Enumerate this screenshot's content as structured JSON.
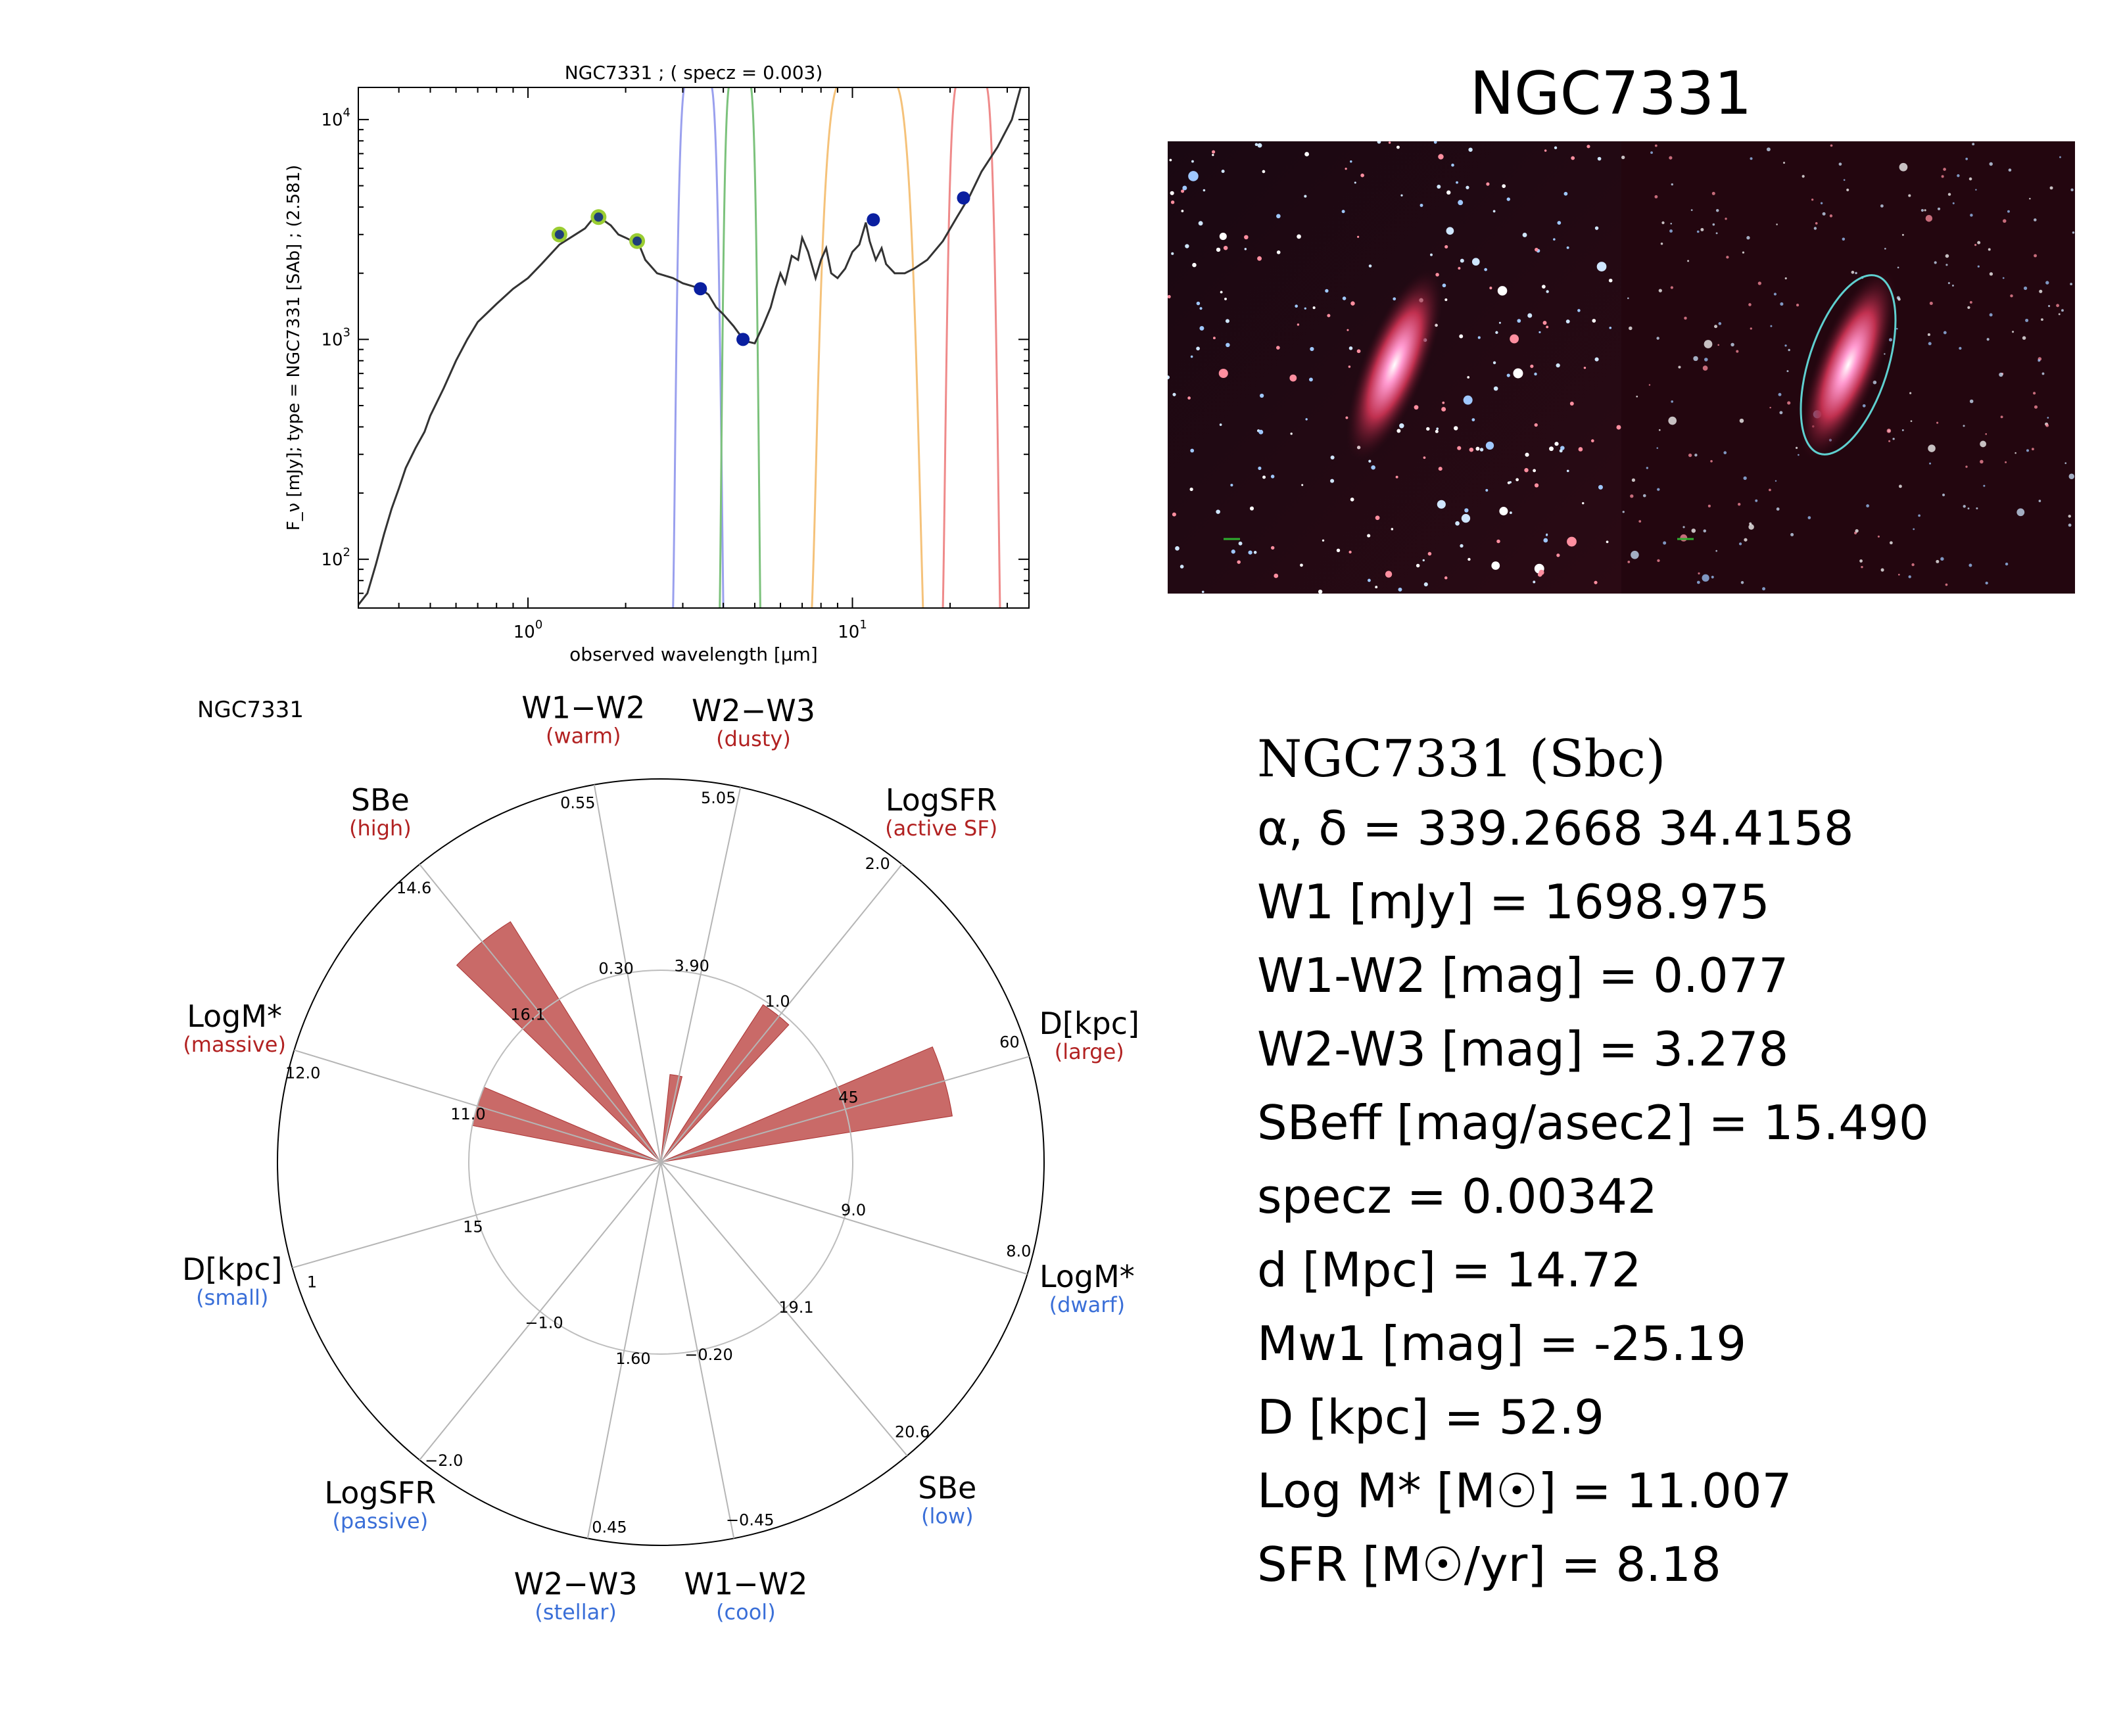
{
  "sed_plot": {
    "title": "NGC7331 ; ( specz = 0.003)",
    "xlabel": "observed wavelength [μm]",
    "ylabel": "F_ν [mJy];  type = NGC7331 [SAb] ; (2.581)",
    "x_ticks": [
      "10^0",
      "10^1"
    ],
    "y_ticks": [
      "10^2",
      "10^3",
      "10^4"
    ]
  },
  "galaxy_image": {
    "title": "NGC7331"
  },
  "polar_plot": {
    "name": "NGC7331"
  },
  "info": {
    "title": "NGC7331  (Sbc)",
    "lines": [
      "α, δ = 339.2668 34.4158",
      "W1 [mJy] = 1698.975",
      "W1-W2 [mag] = 0.077",
      "W2-W3 [mag] = 3.278",
      "SBeff [mag/asec2] = 15.490",
      "specz = 0.00342",
      "d [Mpc] = 14.72",
      "Mw1 [mag] = -25.19",
      "D [kpc] = 52.9",
      "Log M* [M☉] = 11.007",
      "SFR [M☉/yr] = 8.18"
    ]
  },
  "chart_data": [
    {
      "type": "line",
      "title": "NGC7331 ; ( specz = 0.003)",
      "xlabel": "observed wavelength [μm]",
      "ylabel": "F_ν [mJy];  type = NGC7331 [SAb] ; (2.581)",
      "xscale": "log",
      "yscale": "log",
      "xlim": [
        0.3,
        35
      ],
      "ylim": [
        60,
        14000
      ],
      "series": [
        {
          "name": "",
          "x": [
            0.3,
            0.32,
            0.34,
            0.36,
            0.38,
            0.4,
            0.42,
            0.45,
            0.48,
            0.5,
            0.55,
            0.6,
            0.65,
            0.7,
            0.8,
            0.9,
            1.0,
            1.1,
            1.25,
            1.4,
            1.5,
            1.6,
            1.7,
            1.8,
            1.9,
            2.0,
            2.1,
            2.2,
            2.3,
            2.5,
            2.8,
            3.0,
            3.2,
            3.4,
            3.6,
            3.8,
            4.0,
            4.3,
            4.5,
            4.7,
            5.0,
            5.3,
            5.6,
            5.8,
            6.0,
            6.2,
            6.5,
            6.8,
            7.0,
            7.3,
            7.7,
            8.0,
            8.3,
            8.6,
            9.0,
            9.5,
            10.0,
            10.5,
            11.0,
            11.3,
            11.8,
            12.3,
            12.7,
            13.5,
            14.5,
            15.5,
            17.0,
            19.0,
            21.0,
            23.0,
            25.0,
            28.0,
            31.0,
            33.0
          ],
          "values": [
            62,
            70,
            95,
            130,
            170,
            210,
            260,
            320,
            380,
            450,
            600,
            800,
            1000,
            1200,
            1450,
            1700,
            1900,
            2200,
            2700,
            3000,
            3200,
            3600,
            3500,
            3300,
            3000,
            2900,
            2800,
            2700,
            2300,
            2000,
            1900,
            1800,
            1750,
            1700,
            1600,
            1400,
            1300,
            1150,
            1050,
            980,
            960,
            1150,
            1400,
            1700,
            2000,
            1800,
            2400,
            2300,
            2900,
            2500,
            1900,
            2300,
            2600,
            2000,
            1900,
            2100,
            2500,
            2700,
            3400,
            2800,
            2300,
            2600,
            2200,
            2000,
            2000,
            2100,
            2300,
            2800,
            3600,
            4500,
            5800,
            7500,
            10000,
            14000
          ]
        }
      ],
      "photometry": [
        {
          "x": 1.25,
          "y": 3000,
          "highlighted": true
        },
        {
          "x": 1.65,
          "y": 3600,
          "highlighted": true
        },
        {
          "x": 2.17,
          "y": 2800,
          "highlighted": true
        },
        {
          "x": 3.4,
          "y": 1700,
          "highlighted": false
        },
        {
          "x": 4.6,
          "y": 1000,
          "highlighted": false
        },
        {
          "x": 11.6,
          "y": 3500,
          "highlighted": false
        },
        {
          "x": 22.0,
          "y": 4400,
          "highlighted": false
        }
      ],
      "filters": [
        {
          "color": "#9aa0ee",
          "range": [
            2.8,
            4.0
          ]
        },
        {
          "color": "#7cc27c",
          "range": [
            3.9,
            5.2
          ]
        },
        {
          "color": "#f5c27a",
          "range": [
            7.5,
            16.5
          ]
        },
        {
          "color": "#ef8a8a",
          "range": [
            19.0,
            28.5
          ]
        }
      ]
    },
    {
      "type": "polar-bar",
      "title": "NGC7331",
      "axes": [
        {
          "label": "W1−W2",
          "sublabel": "(warm)",
          "sub_color": "#b22222",
          "angle": 100,
          "ticks": [
            "0.30",
            "0.55"
          ]
        },
        {
          "label": "W2−W3",
          "sublabel": "(dusty)",
          "sub_color": "#b22222",
          "angle": 78,
          "ticks": [
            "3.90",
            "5.05"
          ]
        },
        {
          "label": "LogSFR",
          "sublabel": "(active SF)",
          "sub_color": "#b22222",
          "angle": 51,
          "ticks": [
            "1.0",
            "2.0"
          ]
        },
        {
          "label": "D[kpc]",
          "sublabel": "(large)",
          "sub_color": "#b22222",
          "angle": 16,
          "ticks": [
            "45",
            "60"
          ]
        },
        {
          "label": "LogM*",
          "sublabel": "(dwarf)",
          "sub_color": "#3a6fd8",
          "angle": -17,
          "ticks": [
            "9.0",
            "8.0"
          ]
        },
        {
          "label": "SBe",
          "sublabel": "(low)",
          "sub_color": "#3a6fd8",
          "angle": -50,
          "ticks": [
            "19.1",
            "20.6"
          ]
        },
        {
          "label": "W1−W2",
          "sublabel": "(cool)",
          "sub_color": "#3a6fd8",
          "angle": -79,
          "ticks": [
            "−0.20",
            "−0.45"
          ]
        },
        {
          "label": "W2−W3",
          "sublabel": "(stellar)",
          "sub_color": "#3a6fd8",
          "angle": -101,
          "ticks": [
            "1.60",
            "0.45"
          ]
        },
        {
          "label": "LogSFR",
          "sublabel": "(passive)",
          "sub_color": "#3a6fd8",
          "angle": -129,
          "ticks": [
            "−1.0",
            "−2.0"
          ]
        },
        {
          "label": "D[kpc]",
          "sublabel": "(small)",
          "sub_color": "#3a6fd8",
          "angle": -164,
          "ticks": [
            "15",
            "1"
          ]
        },
        {
          "label": "LogM*",
          "sublabel": "(massive)",
          "sub_color": "#b22222",
          "angle": 163,
          "ticks": [
            "11.0",
            "12.0"
          ]
        },
        {
          "label": "SBe",
          "sublabel": "(high)",
          "sub_color": "#b22222",
          "angle": 129,
          "ticks": [
            "16.1",
            "14.6"
          ]
        }
      ],
      "bars": [
        {
          "angle": 129,
          "value": 0.74,
          "width": 14
        },
        {
          "angle": 163,
          "value": 0.5,
          "width": 12
        },
        {
          "angle": 80,
          "value": 0.23,
          "width": 8
        },
        {
          "angle": 52,
          "value": 0.49,
          "width": 10
        },
        {
          "angle": 16,
          "value": 0.77,
          "width": 14
        }
      ]
    }
  ]
}
